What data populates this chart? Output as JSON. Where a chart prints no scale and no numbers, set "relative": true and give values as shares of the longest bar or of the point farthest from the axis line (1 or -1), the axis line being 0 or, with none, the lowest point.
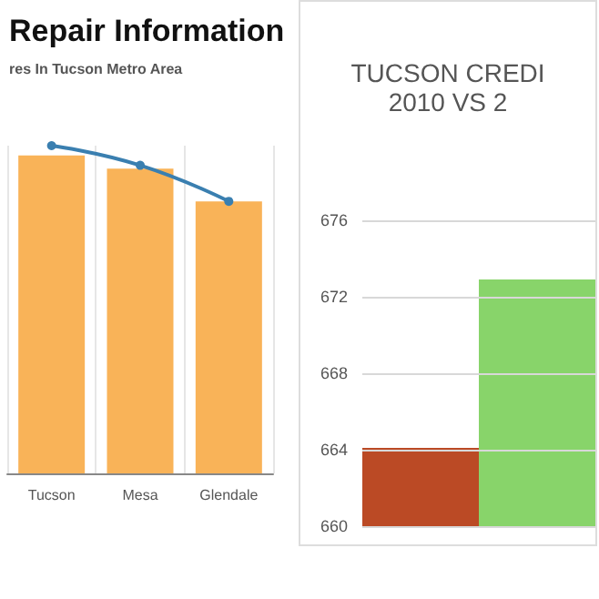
{
  "chart_data": [
    {
      "type": "bar",
      "title": "Repair Information",
      "subtitle": "res In Tucson Metro Area",
      "categories": [
        "Tucson",
        "Mesa",
        "Glendale"
      ],
      "relative": true,
      "grid": "x",
      "series": [
        {
          "color": "#f9b358",
          "values": [
            0.97,
            0.93,
            0.83
          ]
        },
        {
          "type": "line",
          "color": "#3a7fb0",
          "values": [
            1.0,
            0.94,
            0.83
          ],
          "marker": "circle"
        }
      ]
    },
    {
      "type": "bar",
      "title": "TUCSON CREDI\n2010 VS 2",
      "categories": [
        null,
        null
      ],
      "values": [
        664.1,
        672.9
      ],
      "colors": [
        "#bb4a25",
        "#88d46a"
      ],
      "ylim": [
        660,
        676
      ],
      "yticks": [
        660,
        664,
        668,
        672,
        676
      ],
      "grid": "y"
    }
  ]
}
